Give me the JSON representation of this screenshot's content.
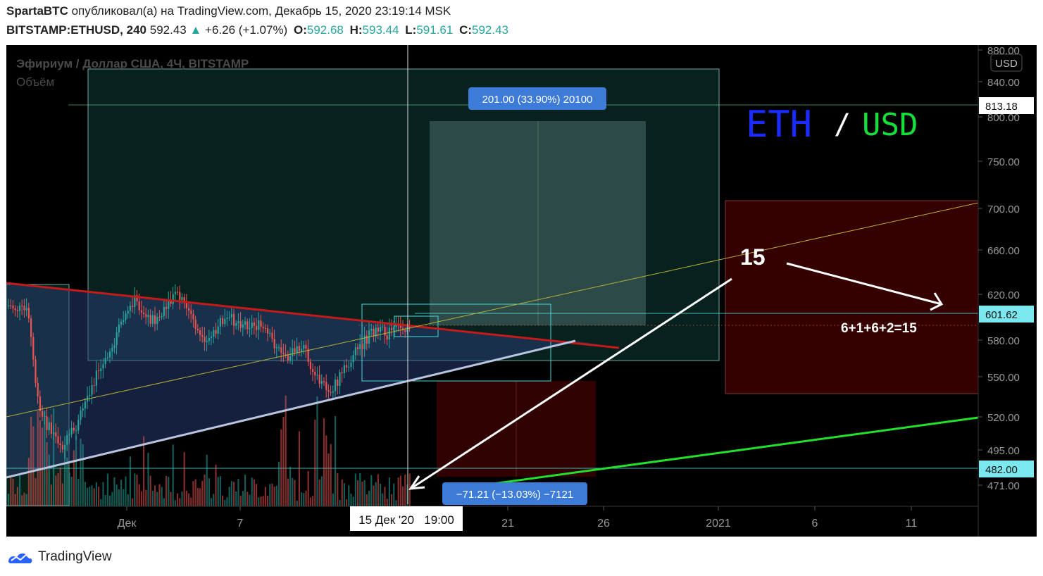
{
  "header": {
    "author": "SpartaBTC",
    "published_text": "опубликовал(а) на TradingView.com, Декабрь 15, 2020 23:19:14 MSK",
    "symbol": "BITSTAMP:ETHUSD, 240",
    "price": "592.43",
    "change_arrow": "▲",
    "change": "+6.26 (+1.07%)",
    "ohlc": [
      {
        "label": "O:",
        "value": "592.68"
      },
      {
        "label": "H:",
        "value": "593.44"
      },
      {
        "label": "L:",
        "value": "591.61"
      },
      {
        "label": "C:",
        "value": "592.43"
      }
    ]
  },
  "chart_data": {
    "type": "candlestick",
    "legend_title": "Эфириум / Доллар США, 4Ч, BITSTAMP",
    "legend_volume": "Объём",
    "currency_button": "USD",
    "big_label": {
      "left": "ETH",
      "sep": "/",
      "right": "USD"
    },
    "y_axis": {
      "ticks": [
        "880.00",
        "840.00",
        "800.00",
        "750.00",
        "700.00",
        "660.00",
        "620.00",
        "580.00",
        "550.00",
        "520.00",
        "495.00",
        "471.00"
      ],
      "price_tags": [
        {
          "value": "813.18",
          "style": "white"
        },
        {
          "value": "601.62",
          "style": "cyan"
        },
        {
          "value": "482.00",
          "style": "cyan"
        }
      ]
    },
    "x_axis": {
      "ticks": [
        "Дек",
        "7",
        "21",
        "26",
        "2021",
        "6",
        "11"
      ],
      "cursor_label": "15 Дек '20   19:00"
    },
    "annotations": {
      "long_position": "201.00 (33.90%) 20100",
      "short_position": "−71.21 (−13.03%) −7121",
      "number_label": "15",
      "sum_label": "6+1+6+2=15"
    },
    "colors": {
      "background": "#000000",
      "up": "#26a69a",
      "down": "#ef5350",
      "resistance": "#c41a1a",
      "support": "#b8c4e0",
      "trend_green": "#22e02c",
      "eth": "#1a2bff",
      "usd": "#15e03a",
      "label_blue": "#3d7bd9"
    }
  }
}
